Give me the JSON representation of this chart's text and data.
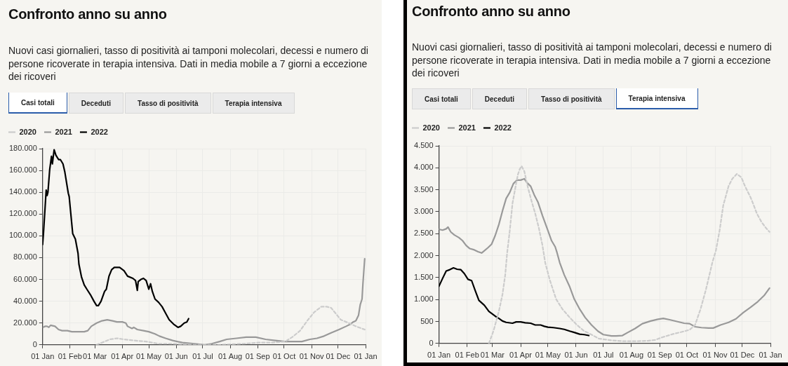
{
  "chart_data": [
    {
      "type": "line",
      "title": "Confronto anno su anno",
      "subtitle": "Nuovi casi giornalieri, tasso di positività ai tamponi molecolari, decessi e numero di persone ricoverate in terapia intensiva. Dati in media mobile a 7 giorni a eccezione dei ricoveri",
      "annotations": [
        "Casi totali",
        "Deceduti",
        "Tasso di positività",
        "Terapia intensiva"
      ],
      "xlim": [
        "2021-01-01",
        "2022-01-01"
      ],
      "xticks": [
        {
          "value": "2021-01-01",
          "label": "01 Jan"
        },
        {
          "value": "2021-02-01",
          "label": "01 Feb"
        },
        {
          "value": "2021-03-01",
          "label": "01 Mar"
        },
        {
          "value": "2021-04-01",
          "label": "01 Apr"
        },
        {
          "value": "2021-05-01",
          "label": "01 May"
        },
        {
          "value": "2021-06-01",
          "label": "01 Jun"
        },
        {
          "value": "2021-07-01",
          "label": "01 Jul"
        },
        {
          "value": "2021-08-01",
          "label": "01 Aug"
        },
        {
          "value": "2021-09-01",
          "label": "01 Sep"
        },
        {
          "value": "2021-10-01",
          "label": "01 Oct"
        },
        {
          "value": "2021-11-01",
          "label": "01 Nov"
        },
        {
          "value": "2021-12-01",
          "label": "01 Dec"
        },
        {
          "value": "2022-01-01",
          "label": "01 Jan"
        }
      ],
      "ylim": [
        0,
        180000
      ],
      "yticks": [
        {
          "value": 0,
          "label": "0"
        },
        {
          "value": 20000,
          "label": "20.000"
        },
        {
          "value": 40000,
          "label": "40.000"
        },
        {
          "value": 60000,
          "label": "60.000"
        },
        {
          "value": 80000,
          "label": "80.000"
        },
        {
          "value": 100000,
          "label": "100.000"
        },
        {
          "value": 120000,
          "label": "120.000"
        },
        {
          "value": 140000,
          "label": "140.000"
        },
        {
          "value": 160000,
          "label": "160.000"
        },
        {
          "value": 180000,
          "label": "180.000"
        }
      ],
      "grid": true,
      "legend": "top left",
      "series": [
        {
          "name": "2020",
          "color": "#cccccc",
          "line_style": "dashed",
          "x": [
            "2021-03-03",
            "2021-03-09",
            "2021-03-18",
            "2021-03-26",
            "2021-04-03",
            "2021-04-14",
            "2021-04-28",
            "2021-05-12",
            "2021-05-26",
            "2021-06-22",
            "2021-07-20",
            "2021-08-16",
            "2021-09-02",
            "2021-09-18",
            "2021-10-02",
            "2021-10-10",
            "2021-10-19",
            "2021-10-27",
            "2021-11-04",
            "2021-11-12",
            "2021-11-18",
            "2021-11-23",
            "2021-11-29",
            "2021-12-04",
            "2021-12-13",
            "2021-12-21",
            "2021-12-31"
          ],
          "values": [
            0,
            2000,
            5000,
            6000,
            5000,
            4000,
            3000,
            1000,
            1000,
            0,
            0,
            1000,
            2000,
            2000,
            3000,
            7000,
            13000,
            22000,
            30000,
            35000,
            35000,
            34000,
            28000,
            23000,
            20000,
            17000,
            14000
          ]
        },
        {
          "name": "2021",
          "color": "#999999",
          "x": [
            "2021-01-01",
            "2021-01-04",
            "2021-01-06",
            "2021-01-08",
            "2021-01-10",
            "2021-01-15",
            "2021-01-19",
            "2021-01-23",
            "2021-01-29",
            "2021-02-03",
            "2021-02-10",
            "2021-02-17",
            "2021-02-21",
            "2021-02-25",
            "2021-03-03",
            "2021-03-09",
            "2021-03-15",
            "2021-03-21",
            "2021-03-26",
            "2021-04-01",
            "2021-04-05",
            "2021-04-07",
            "2021-04-12",
            "2021-04-14",
            "2021-04-18",
            "2021-04-25",
            "2021-05-01",
            "2021-05-08",
            "2021-05-13",
            "2021-05-20",
            "2021-05-28",
            "2021-06-08",
            "2021-06-22",
            "2021-07-03",
            "2021-07-11",
            "2021-07-20",
            "2021-07-28",
            "2021-08-08",
            "2021-08-19",
            "2021-08-30",
            "2021-09-10",
            "2021-09-21",
            "2021-10-02",
            "2021-10-13",
            "2021-10-21",
            "2021-10-30",
            "2021-11-07",
            "2021-11-15",
            "2021-11-23",
            "2021-12-02",
            "2021-12-10",
            "2021-12-15",
            "2021-12-18",
            "2021-12-21",
            "2021-12-24",
            "2021-12-26",
            "2021-12-28",
            "2021-12-29",
            "2021-12-31"
          ],
          "values": [
            16000,
            17000,
            17000,
            16000,
            18000,
            17000,
            14000,
            13000,
            13000,
            12000,
            12000,
            12000,
            13000,
            17000,
            20000,
            22000,
            23000,
            22000,
            21000,
            21000,
            20000,
            17000,
            15000,
            16000,
            14000,
            13000,
            12000,
            10000,
            8000,
            6000,
            4000,
            2000,
            1000,
            0,
            1000,
            3000,
            5000,
            6000,
            7000,
            7000,
            5000,
            4000,
            3000,
            3000,
            3000,
            5000,
            6000,
            8000,
            11000,
            14000,
            17000,
            19000,
            21000,
            22000,
            27000,
            37000,
            42000,
            56000,
            79000
          ]
        },
        {
          "name": "2022",
          "color": "#000000",
          "x": [
            "2021-01-01",
            "2021-01-02",
            "2021-01-05",
            "2021-01-06",
            "2021-01-07",
            "2021-01-09",
            "2021-01-11",
            "2021-01-12",
            "2021-01-14",
            "2021-01-16",
            "2021-01-19",
            "2021-01-21",
            "2021-01-24",
            "2021-01-26",
            "2021-01-30",
            "2021-01-31",
            "2021-02-04",
            "2021-02-07",
            "2021-02-10",
            "2021-02-11",
            "2021-02-14",
            "2021-02-17",
            "2021-02-20",
            "2021-02-24",
            "2021-02-28",
            "2021-03-03",
            "2021-03-05",
            "2021-03-08",
            "2021-03-12",
            "2021-03-14",
            "2021-03-17",
            "2021-03-20",
            "2021-03-23",
            "2021-03-29",
            "2021-04-03",
            "2021-04-07",
            "2021-04-13",
            "2021-04-16",
            "2021-04-18",
            "2021-04-19",
            "2021-04-22",
            "2021-04-25",
            "2021-04-28",
            "2021-05-01",
            "2021-05-03",
            "2021-05-05",
            "2021-05-08",
            "2021-05-12",
            "2021-05-16",
            "2021-05-20",
            "2021-05-24",
            "2021-05-29",
            "2021-06-03",
            "2021-06-06",
            "2021-06-10",
            "2021-06-13",
            "2021-06-15"
          ],
          "values": [
            92000,
            103000,
            142000,
            137000,
            140000,
            161000,
            173000,
            166000,
            179000,
            174000,
            170000,
            170000,
            166000,
            159000,
            139000,
            136000,
            102000,
            97000,
            84000,
            74000,
            62000,
            55000,
            51000,
            46000,
            40000,
            36000,
            36000,
            40000,
            49000,
            51000,
            63000,
            69000,
            71000,
            71000,
            68000,
            63000,
            61000,
            59000,
            50000,
            58000,
            60000,
            61000,
            59000,
            51000,
            56000,
            49000,
            42000,
            39000,
            35000,
            29000,
            23000,
            19000,
            16000,
            17000,
            20000,
            21000,
            24000
          ]
        }
      ]
    },
    {
      "type": "line",
      "title": "Confronto anno su anno",
      "subtitle": "Nuovi casi giornalieri, tasso di positività ai tamponi molecolari, decessi e numero di persone ricoverate in terapia intensiva. Dati in media mobile a 7 giorni a eccezione dei ricoveri",
      "annotations": [
        "Casi totali",
        "Deceduti",
        "Tasso di positività",
        "Terapia intensiva"
      ],
      "xlim": [
        "2021-01-01",
        "2022-01-01"
      ],
      "xticks": [
        {
          "value": "2021-01-01",
          "label": "01 Jan"
        },
        {
          "value": "2021-02-01",
          "label": "01 Feb"
        },
        {
          "value": "2021-03-01",
          "label": "01 Mar"
        },
        {
          "value": "2021-04-01",
          "label": "01 Apr"
        },
        {
          "value": "2021-05-01",
          "label": "01 May"
        },
        {
          "value": "2021-06-01",
          "label": "01 Jun"
        },
        {
          "value": "2021-07-01",
          "label": "01 Jul"
        },
        {
          "value": "2021-08-01",
          "label": "01 Aug"
        },
        {
          "value": "2021-09-01",
          "label": "01 Sep"
        },
        {
          "value": "2021-10-01",
          "label": "01 Oct"
        },
        {
          "value": "2021-11-01",
          "label": "01 Nov"
        },
        {
          "value": "2021-12-01",
          "label": "01 Dec"
        },
        {
          "value": "2022-01-01",
          "label": "01 Jan"
        }
      ],
      "ylim": [
        0,
        4500
      ],
      "yticks": [
        {
          "value": 0,
          "label": "0"
        },
        500,
        {
          "value": 1000,
          "label": "1.000"
        },
        {
          "value": 1500,
          "label": "1.500"
        },
        {
          "value": 2000,
          "label": "2.000"
        },
        {
          "value": 2500,
          "label": "2.500"
        },
        {
          "value": 3000,
          "label": "3.000"
        },
        {
          "value": 3500,
          "label": "3.500"
        },
        {
          "value": 4000,
          "label": "4.000"
        },
        {
          "value": 4500,
          "label": "4.500"
        }
      ],
      "grid": true,
      "legend": "top left",
      "series": [
        {
          "name": "2020",
          "color": "#cccccc",
          "line_style": "dashed",
          "x": [
            "2021-02-25",
            "2021-03-02",
            "2021-03-08",
            "2021-03-12",
            "2021-03-15",
            "2021-03-17",
            "2021-03-20",
            "2021-03-23",
            "2021-03-27",
            "2021-03-29",
            "2021-03-31",
            "2021-04-02",
            "2021-04-05",
            "2021-04-09",
            "2021-04-13",
            "2021-04-17",
            "2021-04-21",
            "2021-04-25",
            "2021-04-28",
            "2021-05-03",
            "2021-05-10",
            "2021-05-17",
            "2021-05-25",
            "2021-06-02",
            "2021-06-10",
            "2021-06-18",
            "2021-06-26",
            "2021-07-10",
            "2021-07-23",
            "2021-08-05",
            "2021-08-19",
            "2021-08-27",
            "2021-09-04",
            "2021-09-15",
            "2021-09-25",
            "2021-10-04",
            "2021-10-10",
            "2021-10-16",
            "2021-10-22",
            "2021-10-29",
            "2021-11-02",
            "2021-11-06",
            "2021-11-10",
            "2021-11-16",
            "2021-11-20",
            "2021-11-25",
            "2021-11-30",
            "2021-12-04",
            "2021-12-10",
            "2021-12-12",
            "2021-12-17",
            "2021-12-22",
            "2021-12-27",
            "2021-12-31"
          ],
          "values": [
            0,
            280,
            730,
            1120,
            1560,
            2040,
            2570,
            3190,
            3640,
            3850,
            3970,
            4040,
            3920,
            3550,
            3240,
            2960,
            2630,
            2230,
            1840,
            1450,
            1010,
            780,
            590,
            420,
            280,
            200,
            110,
            70,
            50,
            50,
            60,
            80,
            140,
            210,
            260,
            310,
            420,
            780,
            1230,
            1840,
            2120,
            2570,
            3140,
            3590,
            3750,
            3860,
            3780,
            3580,
            3330,
            3230,
            2960,
            2770,
            2630,
            2540
          ]
        },
        {
          "name": "2021",
          "color": "#999999",
          "x": [
            "2021-01-01",
            "2021-01-05",
            "2021-01-09",
            "2021-01-11",
            "2021-01-14",
            "2021-01-18",
            "2021-01-23",
            "2021-01-27",
            "2021-01-31",
            "2021-02-04",
            "2021-02-09",
            "2021-02-13",
            "2021-02-17",
            "2021-02-20",
            "2021-02-24",
            "2021-02-28",
            "2021-03-04",
            "2021-03-08",
            "2021-03-12",
            "2021-03-16",
            "2021-03-20",
            "2021-03-24",
            "2021-03-28",
            "2021-04-01",
            "2021-04-05",
            "2021-04-08",
            "2021-04-12",
            "2021-04-16",
            "2021-04-20",
            "2021-04-25",
            "2021-05-01",
            "2021-05-05",
            "2021-05-09",
            "2021-05-11",
            "2021-05-14",
            "2021-05-19",
            "2021-05-25",
            "2021-05-30",
            "2021-06-05",
            "2021-06-11",
            "2021-06-18",
            "2021-06-25",
            "2021-07-01",
            "2021-07-10",
            "2021-07-15",
            "2021-07-22",
            "2021-07-28",
            "2021-08-05",
            "2021-08-13",
            "2021-08-22",
            "2021-08-30",
            "2021-09-05",
            "2021-09-12",
            "2021-09-20",
            "2021-09-28",
            "2021-10-04",
            "2021-10-10",
            "2021-10-17",
            "2021-10-25",
            "2021-10-30",
            "2021-11-07",
            "2021-11-16",
            "2021-11-24",
            "2021-12-02",
            "2021-12-10",
            "2021-12-18",
            "2021-12-25",
            "2021-12-31"
          ],
          "values": [
            2600,
            2580,
            2610,
            2650,
            2540,
            2470,
            2410,
            2340,
            2230,
            2160,
            2130,
            2090,
            2060,
            2110,
            2180,
            2260,
            2460,
            2710,
            3020,
            3300,
            3440,
            3640,
            3720,
            3720,
            3750,
            3660,
            3580,
            3380,
            3220,
            2910,
            2570,
            2340,
            2200,
            2070,
            1840,
            1560,
            1290,
            1010,
            780,
            590,
            420,
            280,
            200,
            170,
            170,
            180,
            250,
            340,
            450,
            510,
            550,
            570,
            540,
            500,
            460,
            450,
            380,
            360,
            350,
            350,
            420,
            480,
            560,
            700,
            820,
            950,
            1090,
            1260
          ]
        },
        {
          "name": "2022",
          "color": "#000000",
          "x": [
            "2021-01-01",
            "2021-01-05",
            "2021-01-09",
            "2021-01-13",
            "2021-01-17",
            "2021-01-21",
            "2021-01-25",
            "2021-01-29",
            "2021-02-02",
            "2021-02-06",
            "2021-02-10",
            "2021-02-14",
            "2021-02-20",
            "2021-02-25",
            "2021-03-04",
            "2021-03-08",
            "2021-03-12",
            "2021-03-16",
            "2021-03-23",
            "2021-03-27",
            "2021-04-01",
            "2021-04-06",
            "2021-04-12",
            "2021-04-17",
            "2021-04-23",
            "2021-04-27",
            "2021-05-01",
            "2021-05-07",
            "2021-05-14",
            "2021-05-19",
            "2021-05-25",
            "2021-05-30",
            "2021-06-05",
            "2021-06-10",
            "2021-06-15"
          ],
          "values": [
            1300,
            1480,
            1650,
            1680,
            1720,
            1690,
            1680,
            1590,
            1460,
            1430,
            1200,
            980,
            870,
            730,
            620,
            570,
            510,
            480,
            460,
            490,
            490,
            470,
            460,
            420,
            420,
            390,
            370,
            360,
            340,
            320,
            280,
            250,
            210,
            200,
            180
          ]
        }
      ]
    }
  ]
}
